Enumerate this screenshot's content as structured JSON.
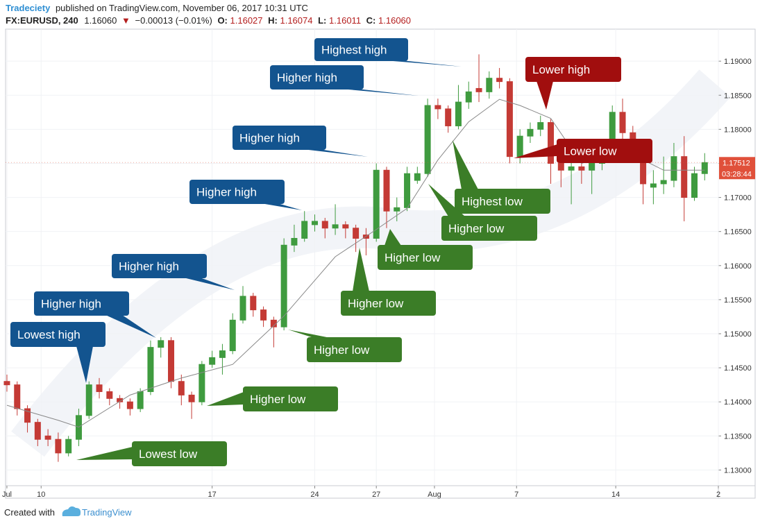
{
  "header": {
    "author": "Tradeciety",
    "published": "published on TradingView.com, November 06, 2017 10:31 UTC",
    "symbol": "FX:EURUSD, 240",
    "last": "1.16060",
    "arrow": "▼",
    "change": "−0.00013 (−0.01%)",
    "o_label": "O:",
    "o_value": "1.16027",
    "h_label": "H:",
    "h_value": "1.16074",
    "l_label": "L:",
    "l_value": "1.16011",
    "c_label": "C:",
    "c_value": "1.16060"
  },
  "chart_data": {
    "type": "candlestick",
    "grid": true,
    "up_color": "#3f9b3f",
    "down_color": "#c43a35",
    "x": [
      0,
      3,
      6,
      9,
      12,
      15,
      18,
      21,
      24,
      27,
      30,
      33,
      36,
      39,
      42,
      45,
      48,
      51,
      54,
      57,
      60,
      63,
      66,
      69,
      72,
      75,
      78,
      81,
      84,
      87,
      90,
      93,
      96,
      99,
      102,
      105,
      108,
      111,
      114,
      117,
      120,
      123,
      126,
      129,
      132,
      135,
      138,
      141,
      144,
      147,
      150,
      153,
      156,
      159,
      162,
      165,
      168,
      171,
      174,
      177,
      180,
      183,
      186,
      189,
      192,
      195,
      198,
      201,
      204
    ],
    "open": [
      1.143,
      1.1425,
      1.139,
      1.137,
      1.135,
      1.1345,
      1.1325,
      1.1345,
      1.138,
      1.1425,
      1.1415,
      1.1405,
      1.14,
      1.139,
      1.1415,
      1.148,
      1.149,
      1.143,
      1.141,
      1.14,
      1.1455,
      1.1465,
      1.1475,
      1.152,
      1.1555,
      1.1535,
      1.152,
      1.151,
      1.163,
      1.164,
      1.166,
      1.1665,
      1.1655,
      1.166,
      1.1655,
      1.1645,
      1.164,
      1.174,
      1.168,
      1.1685,
      1.1725,
      1.1735,
      1.1835,
      1.183,
      1.1805,
      1.184,
      1.186,
      1.1855,
      1.1875,
      1.187,
      1.176,
      1.179,
      1.18,
      1.181,
      1.175,
      1.174,
      1.1745,
      1.174,
      1.175,
      1.176,
      1.1825,
      1.1795,
      1.177,
      1.1715,
      1.172,
      1.1725,
      1.176,
      1.17,
      1.1735
    ],
    "high": [
      1.144,
      1.143,
      1.1395,
      1.1375,
      1.136,
      1.1355,
      1.135,
      1.139,
      1.143,
      1.1435,
      1.142,
      1.141,
      1.1405,
      1.142,
      1.149,
      1.1495,
      1.1495,
      1.144,
      1.1415,
      1.146,
      1.1475,
      1.1485,
      1.153,
      1.157,
      1.156,
      1.154,
      1.1525,
      1.164,
      1.166,
      1.168,
      1.1675,
      1.167,
      1.169,
      1.1665,
      1.166,
      1.1655,
      1.175,
      1.1745,
      1.17,
      1.1745,
      1.1745,
      1.1845,
      1.1845,
      1.1835,
      1.1865,
      1.187,
      1.191,
      1.1885,
      1.189,
      1.1875,
      1.18,
      1.181,
      1.182,
      1.1815,
      1.176,
      1.176,
      1.1755,
      1.176,
      1.177,
      1.1835,
      1.1845,
      1.1805,
      1.1775,
      1.174,
      1.176,
      1.178,
      1.179,
      1.1745,
      1.1765
    ],
    "low": [
      1.1415,
      1.138,
      1.1355,
      1.1335,
      1.1335,
      1.1312,
      1.132,
      1.1335,
      1.1375,
      1.1405,
      1.1395,
      1.139,
      1.138,
      1.1385,
      1.141,
      1.1465,
      1.142,
      1.1395,
      1.1375,
      1.1395,
      1.145,
      1.144,
      1.147,
      1.1515,
      1.1525,
      1.151,
      1.148,
      1.1505,
      1.162,
      1.1635,
      1.165,
      1.164,
      1.1645,
      1.164,
      1.162,
      1.1615,
      1.1635,
      1.1655,
      1.1665,
      1.168,
      1.172,
      1.173,
      1.1815,
      1.1795,
      1.18,
      1.183,
      1.184,
      1.1845,
      1.186,
      1.175,
      1.175,
      1.178,
      1.179,
      1.172,
      1.1715,
      1.169,
      1.172,
      1.1705,
      1.174,
      1.1755,
      1.1785,
      1.176,
      1.169,
      1.169,
      1.1705,
      1.1715,
      1.1665,
      1.1695,
      1.1725
    ],
    "close": [
      1.1425,
      1.139,
      1.137,
      1.1345,
      1.1345,
      1.1325,
      1.1345,
      1.138,
      1.1425,
      1.1415,
      1.1405,
      1.14,
      1.139,
      1.1415,
      1.148,
      1.149,
      1.143,
      1.141,
      1.14,
      1.1455,
      1.1465,
      1.1475,
      1.152,
      1.1555,
      1.1535,
      1.152,
      1.151,
      1.163,
      1.164,
      1.1665,
      1.1665,
      1.1655,
      1.166,
      1.1655,
      1.164,
      1.164,
      1.174,
      1.168,
      1.1685,
      1.1735,
      1.1735,
      1.1835,
      1.183,
      1.1805,
      1.184,
      1.1855,
      1.1855,
      1.1875,
      1.187,
      1.176,
      1.179,
      1.18,
      1.181,
      1.175,
      1.174,
      1.1745,
      1.174,
      1.175,
      1.176,
      1.1825,
      1.1795,
      1.177,
      1.172,
      1.172,
      1.1725,
      1.176,
      1.17,
      1.1735,
      1.17512
    ],
    "ma": {
      "color": "#888888",
      "x": [
        0,
        15,
        21,
        36,
        51,
        66,
        81,
        96,
        108,
        117,
        126,
        135,
        144,
        150,
        159,
        168,
        180,
        192,
        204
      ],
      "values": [
        1.1395,
        1.1373,
        1.1363,
        1.141,
        1.1435,
        1.1455,
        1.1526,
        1.1613,
        1.1653,
        1.1684,
        1.1755,
        1.1811,
        1.1844,
        1.1835,
        1.1816,
        1.175,
        1.177,
        1.174,
        1.174
      ]
    },
    "xlim": [
      -0.4,
      208
    ],
    "xticks": [
      {
        "value": 0,
        "label": "Jul"
      },
      10.0,
      {
        "value": 60,
        "label": "17"
      },
      {
        "value": 90,
        "label": "24"
      },
      {
        "value": 108,
        "label": "27"
      },
      {
        "value": 125,
        "label": "Aug"
      },
      {
        "value": 149,
        "label": "7"
      },
      {
        "value": 178,
        "label": "14"
      },
      {
        "value": 208,
        "label": "2"
      }
    ],
    "ylim": [
      1.1277,
      1.1947
    ],
    "yticks": [
      {
        "value": 1.13,
        "label": "1.13000"
      },
      {
        "value": 1.135,
        "label": "1.13500"
      },
      {
        "value": 1.14,
        "label": "1.14000"
      },
      {
        "value": 1.145,
        "label": "1.14500"
      },
      {
        "value": 1.15,
        "label": "1.15000"
      },
      {
        "value": 1.155,
        "label": "1.15500"
      },
      {
        "value": 1.16,
        "label": "1.16000"
      },
      {
        "value": 1.165,
        "label": "1.16500"
      },
      {
        "value": 1.17,
        "label": "1.17000"
      },
      {
        "value": 1.175,
        "label": "1.17500"
      },
      {
        "value": 1.18,
        "label": "1.18000"
      },
      {
        "value": 1.185,
        "label": "1.18500"
      },
      {
        "value": 1.19,
        "label": "1.19000"
      }
    ],
    "price_tag_color": "#e0503a",
    "timer": "03:28:44",
    "annotations": [
      {
        "text": "Highest high",
        "color": "#13548f"
      },
      {
        "text": "Higher high",
        "color": "#13548f"
      },
      {
        "text": "Higher high",
        "color": "#13548f"
      },
      {
        "text": "Higher high",
        "color": "#13548f"
      },
      {
        "text": "Higher high",
        "color": "#13548f"
      },
      {
        "text": "Higher high",
        "color": "#13548f"
      },
      {
        "text": "Lowest high",
        "color": "#13548f"
      },
      {
        "text": "Lower high",
        "color": "#a10e0e"
      },
      {
        "text": "Lower low",
        "color": "#a10e0e"
      },
      {
        "text": "Highest low",
        "color": "#3b7d27"
      },
      {
        "text": "Higher low",
        "color": "#3b7d27"
      },
      {
        "text": "Higher low",
        "color": "#3b7d27"
      },
      {
        "text": "Higher low",
        "color": "#3b7d27"
      },
      {
        "text": "Higher low",
        "color": "#3b7d27"
      },
      {
        "text": "Higher low",
        "color": "#3b7d27"
      },
      {
        "text": "Lowest low",
        "color": "#3b7d27"
      }
    ]
  },
  "footer": {
    "created": "Created with",
    "brand": "TradingView"
  }
}
